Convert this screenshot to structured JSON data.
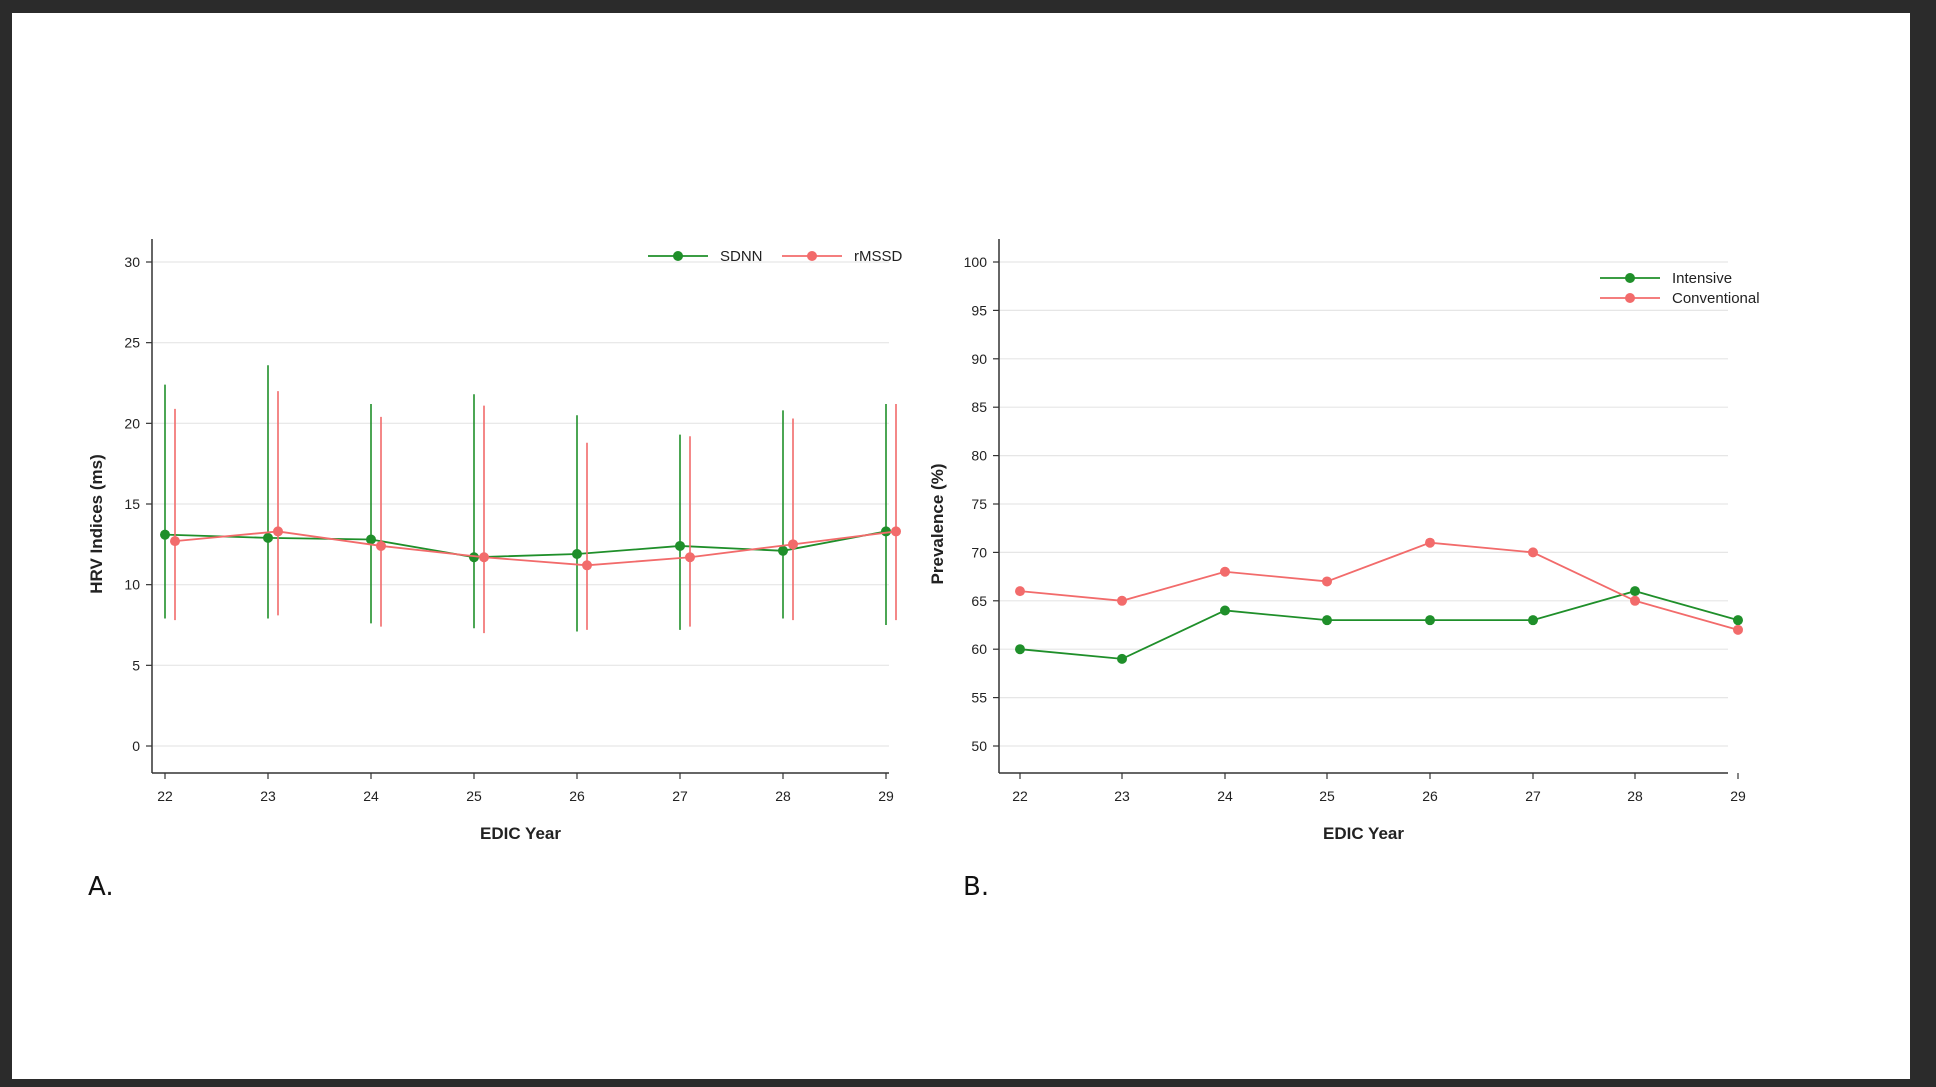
{
  "colors": {
    "green": "#1f8f2a",
    "red": "#f26b6b",
    "grid": "#e6e6e6",
    "axis": "#333333"
  },
  "chart_data": [
    {
      "type": "line",
      "panel_label": "A.",
      "xlabel": "EDIC Year",
      "ylabel": "HRV Indices (ms)",
      "x": [
        22,
        23,
        24,
        25,
        26,
        27,
        28,
        29
      ],
      "ylim": [
        0,
        30
      ],
      "yticks": [
        0,
        5,
        10,
        15,
        20,
        25,
        30
      ],
      "legend_position": "top-right",
      "legend_layout": "horizontal",
      "grid": true,
      "error_bars": true,
      "series": [
        {
          "name": "SDNN",
          "color": "#1f8f2a",
          "values": [
            13.1,
            12.9,
            12.8,
            11.7,
            11.9,
            12.4,
            12.1,
            13.3
          ],
          "lower": [
            7.9,
            7.9,
            7.6,
            7.3,
            7.1,
            7.2,
            7.9,
            7.5
          ],
          "upper": [
            22.4,
            23.6,
            21.2,
            21.8,
            20.5,
            19.3,
            20.8,
            21.2
          ]
        },
        {
          "name": "rMSSD",
          "color": "#f26b6b",
          "values": [
            12.7,
            13.3,
            12.4,
            11.7,
            11.2,
            11.7,
            12.5,
            13.3
          ],
          "lower": [
            7.8,
            8.1,
            7.4,
            7.0,
            7.2,
            7.4,
            7.8,
            7.8
          ],
          "upper": [
            20.9,
            22.0,
            20.4,
            21.1,
            18.8,
            19.2,
            20.3,
            21.2
          ]
        }
      ]
    },
    {
      "type": "line",
      "panel_label": "B.",
      "xlabel": "EDIC Year",
      "ylabel": "Prevalence (%)",
      "x": [
        22,
        23,
        24,
        25,
        26,
        27,
        28,
        29
      ],
      "ylim": [
        50,
        100
      ],
      "yticks": [
        50,
        55,
        60,
        65,
        70,
        75,
        80,
        85,
        90,
        95,
        100
      ],
      "legend_position": "top-right",
      "legend_layout": "vertical",
      "grid": true,
      "series": [
        {
          "name": "Intensive",
          "color": "#1f8f2a",
          "values": [
            60,
            59,
            64,
            63,
            63,
            63,
            66,
            63
          ]
        },
        {
          "name": "Conventional",
          "color": "#f26b6b",
          "values": [
            66,
            65,
            68,
            67,
            71,
            70,
            65,
            62
          ]
        }
      ]
    }
  ]
}
